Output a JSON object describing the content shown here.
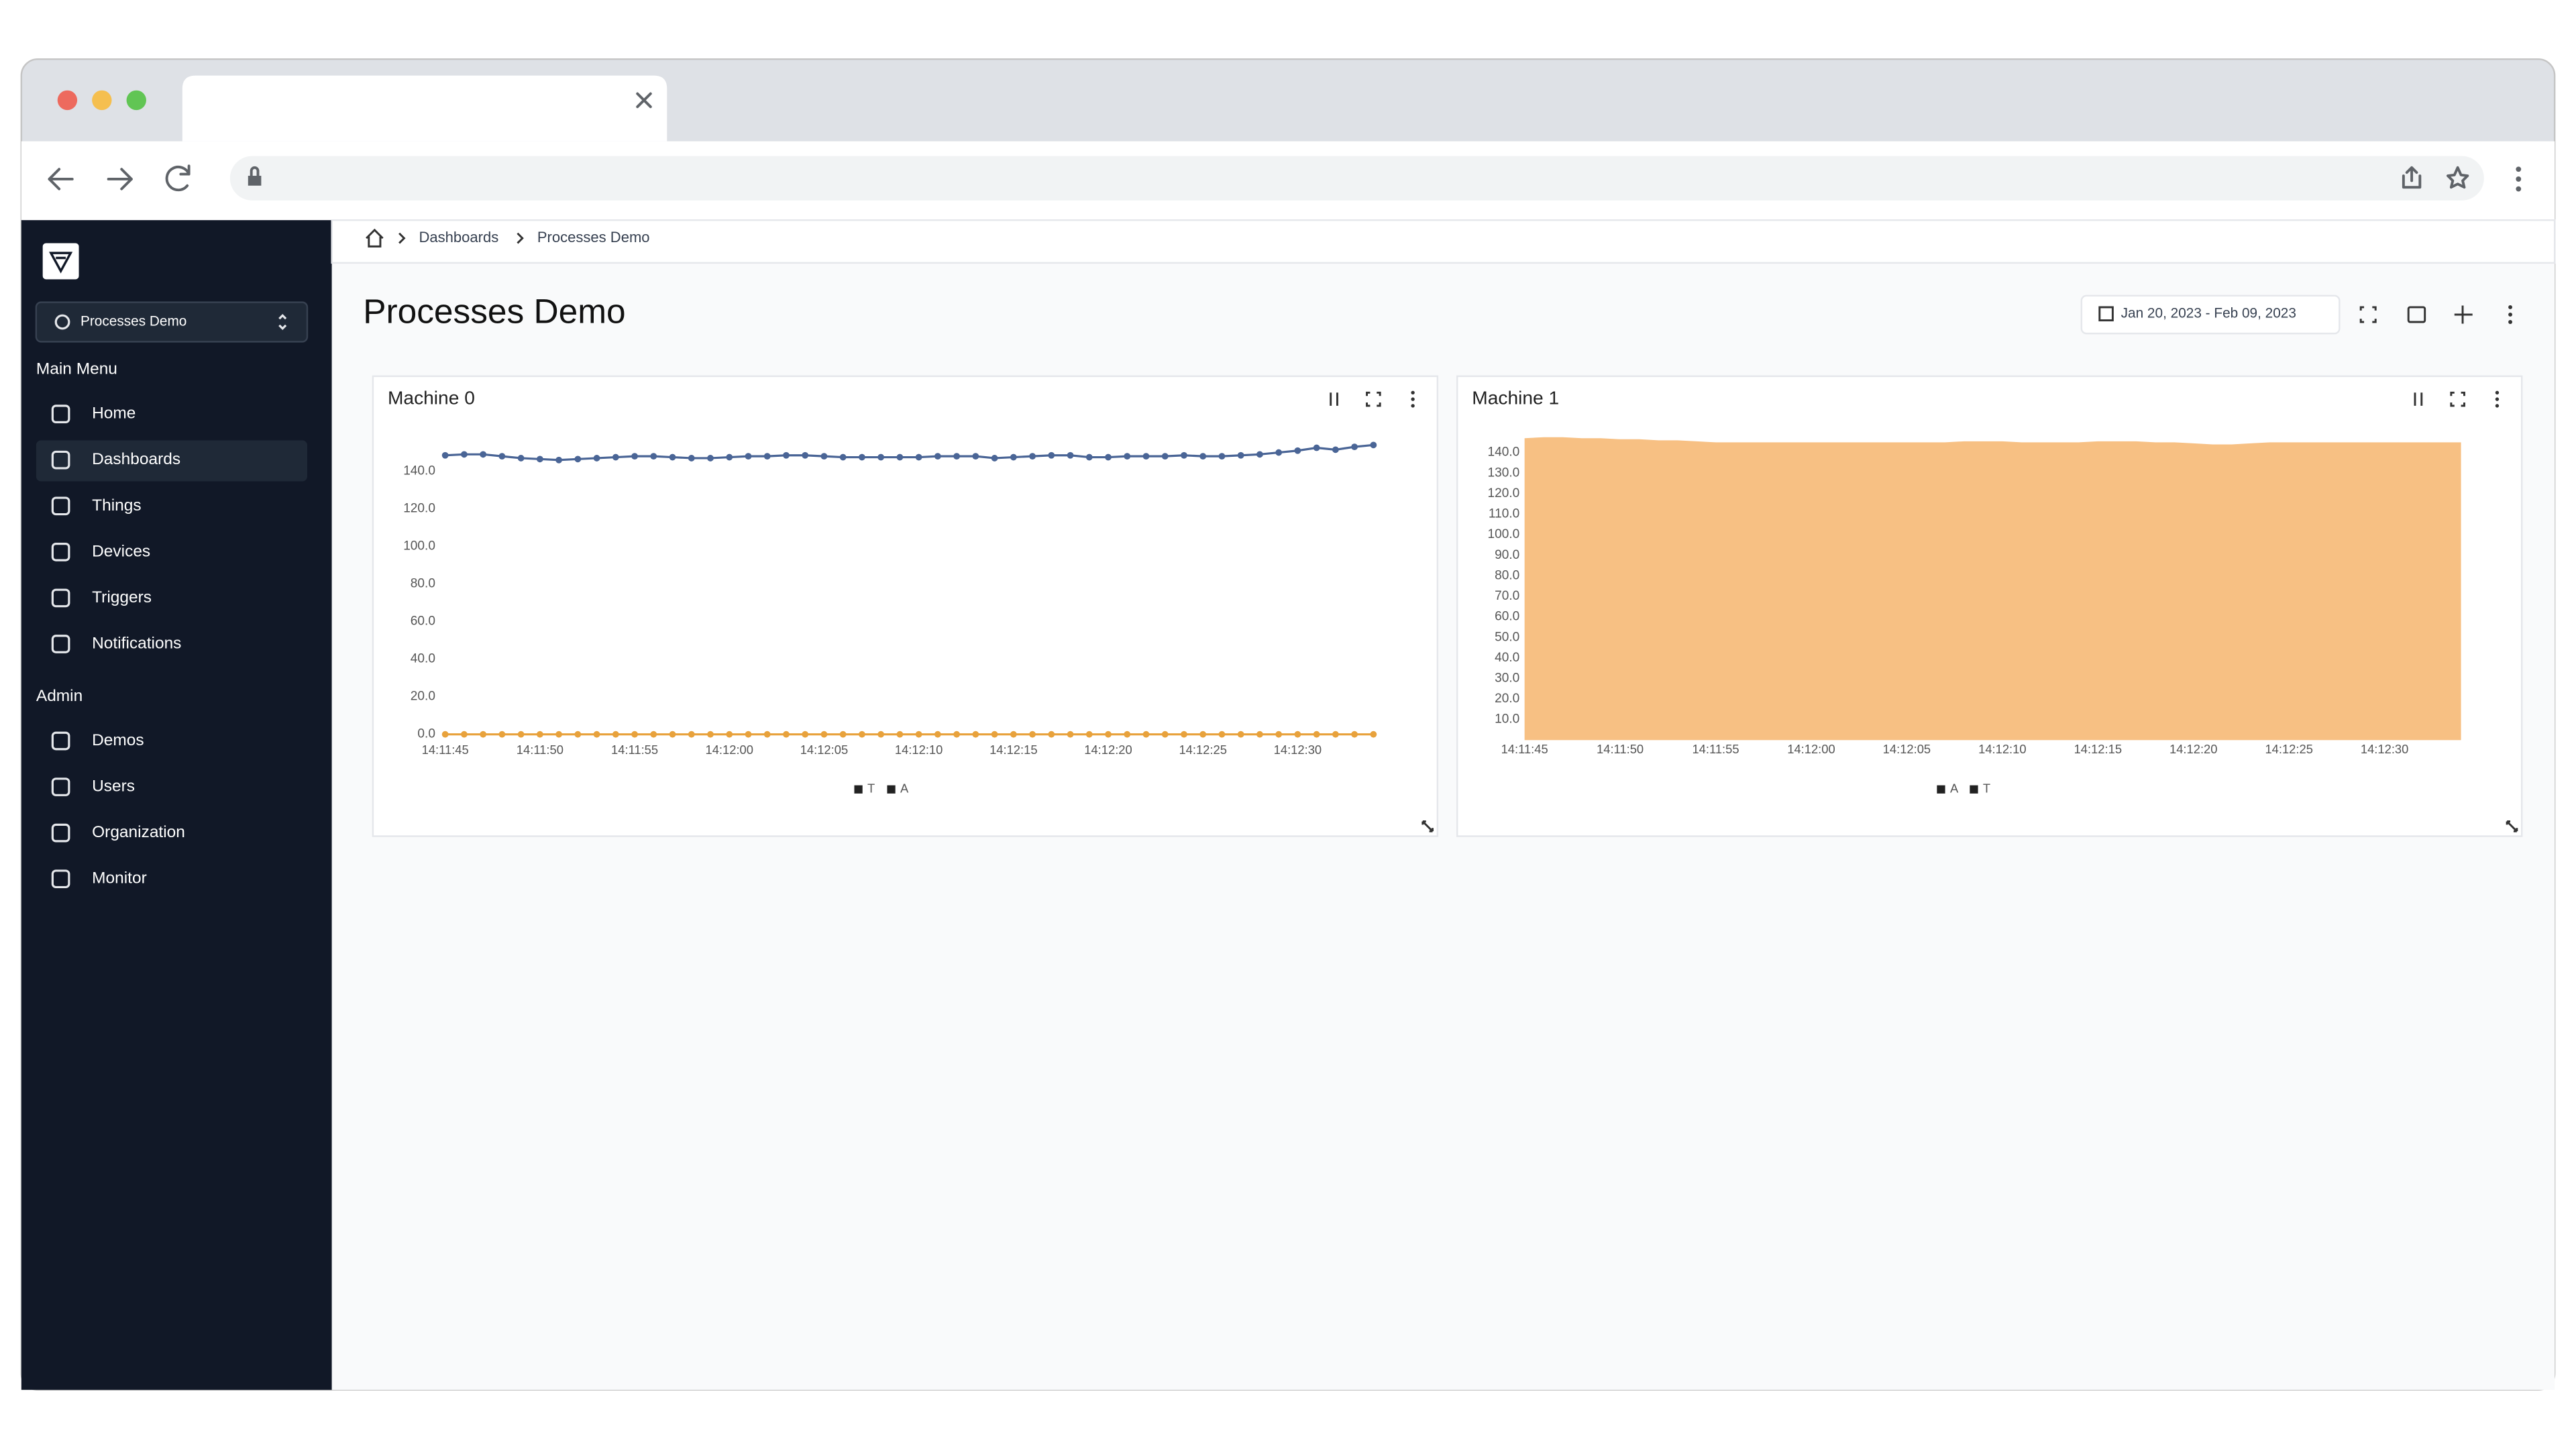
{
  "sidebar": {
    "project": "Processes Demo",
    "main_menu": "Main Menu",
    "main_items": [
      "Home",
      "Dashboards",
      "Things",
      "Devices",
      "Triggers",
      "Notifications"
    ],
    "admin": "Admin",
    "admin_items": [
      "Demos",
      "Users",
      "Organization",
      "Monitor"
    ]
  },
  "breadcrumb": [
    "Dashboards",
    "Processes Demo"
  ],
  "page": {
    "title": "Processes Demo",
    "date_range": "Jan 20, 2023 - Feb 09, 2023"
  },
  "chart_data": [
    {
      "type": "line",
      "title": "Machine 0",
      "categories": [
        "14:11:45",
        null,
        null,
        null,
        null,
        "14:11:50",
        null,
        null,
        null,
        null,
        "14:11:55",
        null,
        null,
        null,
        null,
        "14:12:00",
        null,
        null,
        null,
        null,
        "14:12:05",
        null,
        null,
        null,
        null,
        "14:12:10",
        null,
        null,
        null,
        null,
        "14:12:15",
        null,
        null,
        null,
        null,
        "14:12:20",
        null,
        null,
        null,
        null,
        "14:12:25",
        null,
        null,
        null,
        null,
        "14:12:30",
        null,
        null,
        null,
        null
      ],
      "series": [
        {
          "name": "T",
          "color": "#4a6596",
          "values": [
            148.5,
            149,
            149,
            148,
            147,
            146.5,
            146,
            146.5,
            147,
            147.5,
            148,
            148,
            147.5,
            147,
            147,
            147.5,
            148,
            148,
            148.5,
            148.5,
            148,
            147.5,
            147.5,
            147.5,
            147.5,
            147.5,
            148,
            148,
            148,
            147,
            147.5,
            148,
            148.5,
            148.5,
            147.5,
            147.5,
            148,
            148,
            148,
            148.5,
            148,
            148,
            148.5,
            149,
            150,
            151,
            152.5,
            151.5,
            153,
            154
          ]
        },
        {
          "name": "A",
          "color": "#e8a23c",
          "values": [
            0,
            0,
            0,
            0,
            0,
            0,
            0,
            0,
            0,
            0,
            0,
            0,
            0,
            0,
            0,
            0,
            0,
            0,
            0,
            0,
            0,
            0,
            0,
            0,
            0,
            0,
            0,
            0,
            0,
            0,
            0,
            0,
            0,
            0,
            0,
            0,
            0,
            0,
            0,
            0,
            0,
            0,
            0,
            0,
            0,
            0,
            0,
            0,
            0,
            0
          ]
        }
      ],
      "ylim": [
        0,
        160
      ],
      "yticks": [
        {
          "value": 0,
          "label": "0.0"
        },
        {
          "value": 20,
          "label": "20.0"
        },
        {
          "value": 40,
          "label": "40.0"
        },
        {
          "value": 60,
          "label": "60.0"
        },
        {
          "value": 80,
          "label": "80.0"
        },
        {
          "value": 100,
          "label": "100.0"
        },
        {
          "value": 120,
          "label": "120.0"
        },
        {
          "value": 140,
          "label": "140.0"
        }
      ]
    },
    {
      "type": "area",
      "stacked": true,
      "title": "Machine 1",
      "categories": [
        "14:11:45",
        null,
        null,
        null,
        null,
        "14:11:50",
        null,
        null,
        null,
        null,
        "14:11:55",
        null,
        null,
        null,
        null,
        "14:12:00",
        null,
        null,
        null,
        null,
        "14:12:05",
        null,
        null,
        null,
        null,
        "14:12:10",
        null,
        null,
        null,
        null,
        "14:12:15",
        null,
        null,
        null,
        null,
        "14:12:20",
        null,
        null,
        null,
        null,
        "14:12:25",
        null,
        null,
        null,
        null,
        "14:12:30",
        null,
        null,
        null,
        null
      ],
      "series": [
        {
          "name": "A",
          "color": "#e8a23c",
          "values": [
            0,
            0,
            0,
            0,
            0,
            0,
            0,
            0,
            0,
            0,
            0,
            0,
            0,
            0,
            0,
            0,
            0,
            0,
            0,
            0,
            0,
            0,
            0,
            0,
            0,
            0,
            0,
            0,
            0,
            0,
            0,
            0,
            0,
            0,
            0,
            0,
            0,
            0,
            0,
            0,
            0,
            0,
            0,
            0,
            0,
            0,
            0,
            0,
            0,
            0
          ]
        },
        {
          "name": "T",
          "color": "#f7c083",
          "values": [
            147,
            147.5,
            147.5,
            147,
            147,
            146.5,
            146.5,
            146,
            146,
            145.5,
            145,
            145,
            145,
            145,
            145,
            145,
            145,
            145,
            145,
            145,
            145,
            145,
            145,
            145.5,
            145.5,
            145.5,
            145,
            145,
            145,
            145,
            145.5,
            145.5,
            145.5,
            145,
            145,
            144.5,
            144,
            144,
            144.5,
            145,
            145,
            145,
            145,
            145,
            145,
            145,
            145,
            145,
            145,
            145
          ]
        }
      ],
      "ylim": [
        0,
        150
      ],
      "yticks": [
        {
          "value": 10,
          "label": "10.0"
        },
        {
          "value": 20,
          "label": "20.0"
        },
        {
          "value": 30,
          "label": "30.0"
        },
        {
          "value": 40,
          "label": "40.0"
        },
        {
          "value": 50,
          "label": "50.0"
        },
        {
          "value": 60,
          "label": "60.0"
        },
        {
          "value": 70,
          "label": "70.0"
        },
        {
          "value": 80,
          "label": "80.0"
        },
        {
          "value": 90,
          "label": "90.0"
        },
        {
          "value": 100,
          "label": "100.0"
        },
        {
          "value": 110,
          "label": "110.0"
        },
        {
          "value": 120,
          "label": "120.0"
        },
        {
          "value": 130,
          "label": "130.0"
        },
        {
          "value": 140,
          "label": "140.0"
        }
      ]
    }
  ]
}
